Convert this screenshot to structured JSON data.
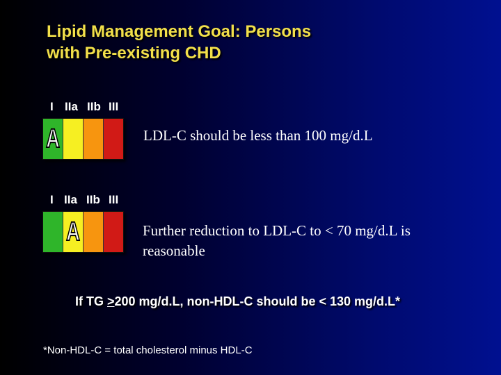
{
  "title": {
    "line1": "Lipid Management Goal: Persons",
    "line2": "with Pre-existing CHD"
  },
  "recommendations": [
    {
      "class_labels": [
        "I",
        "IIa",
        "IIb",
        "III"
      ],
      "level_letter": "A",
      "highlighted_class": "I",
      "text": "LDL-C should be less than 100 mg/d.L"
    },
    {
      "class_labels": [
        "I",
        "IIa",
        "IIb",
        "III"
      ],
      "level_letter": "A",
      "highlighted_class": "IIa",
      "text_line1": "Further reduction to LDL-C to < 70 mg/d.L is",
      "text_line2": "reasonable"
    }
  ],
  "tg_statement": {
    "prefix": "If TG ",
    "underlined": ">",
    "suffix": "200 mg/d.L, non-HDL-C should be < 130 mg/d.L*"
  },
  "footnote": "*Non-HDL-C = total cholesterol minus HDL-C",
  "colors": {
    "title": "#f2e04a",
    "class_I": "#2fb52a",
    "class_IIa": "#f6ef22",
    "class_IIb": "#f7950f",
    "class_III": "#d11a16"
  }
}
